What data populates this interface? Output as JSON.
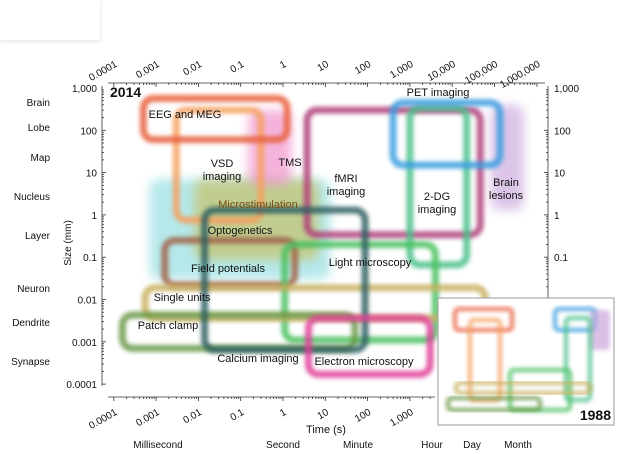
{
  "chart_data": {
    "type": "diagram",
    "year_main": "2014",
    "year_inset": "1988",
    "xlabel": "Time (s)",
    "ylabel": "Size (mm)",
    "x_scale": "log",
    "y_scale": "log",
    "xlim": [
      0.0001,
      1000000
    ],
    "ylim": [
      0.0001,
      1000
    ],
    "x_ticks_top": [
      "0.0001",
      "0.001",
      "0.01",
      "0.1",
      "1",
      "10",
      "100",
      "1,000",
      "10,000",
      "100,000",
      "1,000,000"
    ],
    "x_ticks_bottom": [
      "0.0001",
      "0.001",
      "0.01",
      "0.1",
      "1",
      "10",
      "100",
      "1,000"
    ],
    "y_ticks_left": [
      "1,000",
      "100",
      "10",
      "1",
      "0.1",
      "0.01",
      "0.001",
      "0.0001"
    ],
    "y_ticks_right": [
      "1,000",
      "100",
      "10",
      "1",
      "0.1"
    ],
    "size_labels": [
      "Brain",
      "Lobe",
      "Map",
      "Nucleus",
      "Layer",
      "Neuron",
      "Dendrite",
      "Synapse"
    ],
    "time_labels": [
      "Millisecond",
      "Second",
      "Minute",
      "Hour",
      "Day",
      "Month"
    ],
    "methods": [
      {
        "label": "Optogenetics",
        "style": "fill",
        "color": "#8fdcdf",
        "time": [
          0.0007,
          13
        ],
        "size": [
          0.03,
          7
        ]
      },
      {
        "label": "Microstimulation",
        "style": "fill",
        "color": "#c8c060",
        "time": [
          0.008,
          7
        ],
        "size": [
          0.085,
          7
        ]
      },
      {
        "label": "Brain lesions",
        "style": "fill",
        "color": "#c9a6dc",
        "time": [
          80000,
          500000
        ],
        "size": [
          1.3,
          400
        ]
      },
      {
        "label": "TMS",
        "style": "fill",
        "color": "#f08cc8",
        "time": [
          0.15,
          1.6
        ],
        "size": [
          5,
          300
        ]
      },
      {
        "label": "VSD imaging",
        "style": "outline",
        "color": "#f5a060",
        "time": [
          0.003,
          0.3
        ],
        "size": [
          0.75,
          300
        ]
      },
      {
        "label": "EEG and MEG",
        "style": "outline",
        "color": "#e8603c",
        "time": [
          0.0005,
          1.25
        ],
        "size": [
          60,
          570
        ]
      },
      {
        "label": "fMRI imaging",
        "style": "outline",
        "color": "#b0407a",
        "time": [
          3.7,
          46000
        ],
        "size": [
          0.34,
          300
        ]
      },
      {
        "label": "2-DG imaging",
        "style": "outline",
        "color": "#4cc08a",
        "time": [
          1000,
          22000
        ],
        "size": [
          0.066,
          340
        ]
      },
      {
        "label": "PET imaging",
        "style": "outline",
        "color": "#3a9de0",
        "time": [
          400,
          135000
        ],
        "size": [
          15,
          450
        ]
      },
      {
        "label": "Field potentials",
        "style": "outline",
        "color": "#a0644a",
        "time": [
          0.0016,
          1.9
        ],
        "size": [
          0.022,
          0.25
        ]
      },
      {
        "label": "Light microscopy",
        "style": "outline",
        "color": "#4cc060",
        "time": [
          1.1,
          4000
        ],
        "size": [
          0.0011,
          0.2
        ]
      },
      {
        "label": "Single units",
        "style": "outline",
        "color": "#c8b060",
        "time": [
          0.00055,
          60000
        ],
        "size": [
          0.0036,
          0.019
        ]
      },
      {
        "label": "Patch clamp",
        "style": "outline",
        "color": "#6a9a4a",
        "time": [
          0.00016,
          50
        ],
        "size": [
          0.0007,
          0.0043
        ]
      },
      {
        "label": "Calcium imaging",
        "style": "outline",
        "color": "#2e5e60",
        "time": [
          0.014,
          87
        ],
        "size": [
          0.00065,
          1.3
        ]
      },
      {
        "label": "Electron microscopy",
        "style": "outline",
        "color": "#e0409a",
        "time": [
          4,
          3000
        ],
        "size": [
          0.00017,
          0.0036
        ]
      }
    ],
    "inset_colors": [
      "#e8603c",
      "#f5a060",
      "#3a9de0",
      "#c9a6dc",
      "#4cc08a",
      "#4cc060",
      "#c8b060",
      "#6a9a4a"
    ]
  }
}
